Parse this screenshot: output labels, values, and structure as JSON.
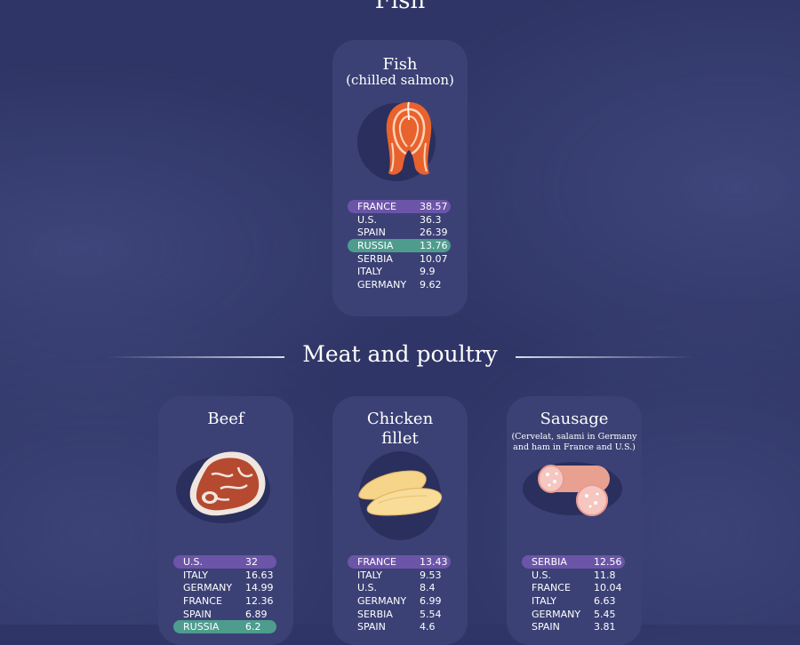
{
  "top_title": "Fish",
  "meat_title": "Meat and poultry",
  "cards": {
    "fish": {
      "title": "Fish",
      "subtitle": "(chilled salmon)",
      "icon": "salmon-steak-icon",
      "rows": [
        {
          "country": "FRANCE",
          "value": "38.57",
          "highlight": "purple"
        },
        {
          "country": "U.S.",
          "value": "36.3",
          "highlight": ""
        },
        {
          "country": "SPAIN",
          "value": "26.39",
          "highlight": ""
        },
        {
          "country": "RUSSIA",
          "value": "13.76",
          "highlight": "green"
        },
        {
          "country": "SERBIA",
          "value": "10.07",
          "highlight": ""
        },
        {
          "country": "ITALY",
          "value": "9.9",
          "highlight": ""
        },
        {
          "country": "GERMANY",
          "value": "9.62",
          "highlight": ""
        }
      ]
    },
    "beef": {
      "title": "Beef",
      "icon": "beef-steak-icon",
      "rows": [
        {
          "country": "U.S.",
          "value": "32",
          "highlight": "purple"
        },
        {
          "country": "ITALY",
          "value": "16.63",
          "highlight": ""
        },
        {
          "country": "GERMANY",
          "value": "14.99",
          "highlight": ""
        },
        {
          "country": "FRANCE",
          "value": "12.36",
          "highlight": ""
        },
        {
          "country": "SPAIN",
          "value": "6.89",
          "highlight": ""
        },
        {
          "country": "RUSSIA",
          "value": "6.2",
          "highlight": "green"
        }
      ]
    },
    "chicken": {
      "title": "Chicken",
      "title2": "fillet",
      "icon": "chicken-fillet-icon",
      "rows": [
        {
          "country": "FRANCE",
          "value": "13.43",
          "highlight": "purple"
        },
        {
          "country": "ITALY",
          "value": "9.53",
          "highlight": ""
        },
        {
          "country": "U.S.",
          "value": "8.4",
          "highlight": ""
        },
        {
          "country": "GERMANY",
          "value": "6.99",
          "highlight": ""
        },
        {
          "country": "SERBIA",
          "value": "5.54",
          "highlight": ""
        },
        {
          "country": "SPAIN",
          "value": "4.6",
          "highlight": ""
        }
      ]
    },
    "sausage": {
      "title": "Sausage",
      "note1": "(Cervelat, salami in Germany",
      "note2": "and ham in France and U.S.)",
      "icon": "sausage-icon",
      "rows": [
        {
          "country": "SERBIA",
          "value": "12.56",
          "highlight": "purple"
        },
        {
          "country": "U.S.",
          "value": "11.8",
          "highlight": ""
        },
        {
          "country": "FRANCE",
          "value": "10.04",
          "highlight": ""
        },
        {
          "country": "ITALY",
          "value": "6.63",
          "highlight": ""
        },
        {
          "country": "GERMANY",
          "value": "5.45",
          "highlight": ""
        },
        {
          "country": "SPAIN",
          "value": "3.81",
          "highlight": ""
        }
      ]
    }
  },
  "colors": {
    "background": "#2f3566",
    "card": "#3b4175",
    "highlight_top": "#6c55a8",
    "highlight_russia": "#4e9c8e"
  }
}
